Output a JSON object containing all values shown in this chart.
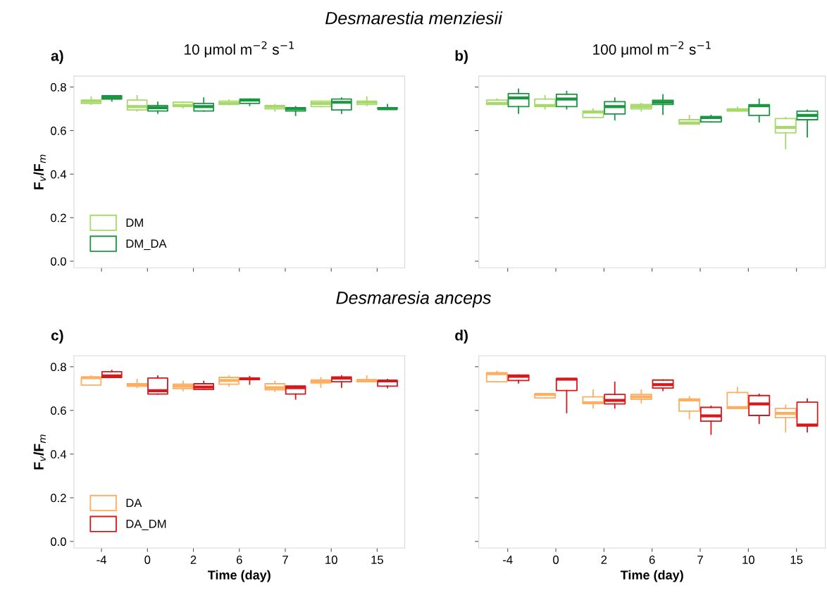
{
  "chart_data": [
    {
      "type": "box",
      "subtitle": "Desmarestia menziesii",
      "title": "10 μmol m$^{−2}$ s$^{−1}$",
      "annotations": [
        "a)"
      ],
      "ylabel": "F$_{v}$/F$_{m}$",
      "categories": [
        "-4",
        "0",
        "2",
        "6",
        "7",
        "10",
        "15"
      ],
      "ylim": [
        -0.03,
        0.85
      ],
      "yticks": [
        {
          "value": 0,
          "label": "0.0"
        },
        {
          "value": 0.2,
          "label": "0.2"
        },
        {
          "value": 0.4,
          "label": "0.4"
        },
        {
          "value": 0.6,
          "label": "0.6"
        },
        {
          "value": 0.8,
          "label": "0.8"
        }
      ],
      "tick_labels": "y",
      "legend": "bottom left",
      "series": [
        {
          "name": "DM",
          "color": "#a6d96a",
          "boxes": [
            {
              "low": 0.72,
              "q1": 0.725,
              "median": 0.735,
              "q3": 0.74,
              "high": 0.755
            },
            {
              "low": 0.69,
              "q1": 0.695,
              "median": 0.71,
              "q3": 0.74,
              "high": 0.76
            },
            {
              "low": 0.705,
              "q1": 0.71,
              "median": 0.715,
              "q3": 0.73,
              "high": 0.73
            },
            {
              "low": 0.72,
              "q1": 0.72,
              "median": 0.725,
              "q3": 0.735,
              "high": 0.74
            },
            {
              "low": 0.69,
              "q1": 0.7,
              "median": 0.71,
              "q3": 0.715,
              "high": 0.72
            },
            {
              "low": 0.71,
              "q1": 0.71,
              "median": 0.725,
              "q3": 0.735,
              "high": 0.735
            },
            {
              "low": 0.715,
              "q1": 0.72,
              "median": 0.73,
              "q3": 0.735,
              "high": 0.755
            }
          ]
        },
        {
          "name": "DM_DA",
          "color": "#1a9641",
          "boxes": [
            {
              "low": 0.735,
              "q1": 0.745,
              "median": 0.75,
              "q3": 0.76,
              "high": 0.76
            },
            {
              "low": 0.68,
              "q1": 0.69,
              "median": 0.705,
              "q3": 0.715,
              "high": 0.73
            },
            {
              "low": 0.69,
              "q1": 0.69,
              "median": 0.71,
              "q3": 0.725,
              "high": 0.75
            },
            {
              "low": 0.715,
              "q1": 0.725,
              "median": 0.74,
              "q3": 0.745,
              "high": 0.745
            },
            {
              "low": 0.67,
              "q1": 0.69,
              "median": 0.7,
              "q3": 0.705,
              "high": 0.71
            },
            {
              "low": 0.68,
              "q1": 0.695,
              "median": 0.73,
              "q3": 0.745,
              "high": 0.75
            },
            {
              "low": 0.7,
              "q1": 0.7,
              "median": 0.7,
              "q3": 0.705,
              "high": 0.72
            }
          ]
        }
      ]
    },
    {
      "type": "box",
      "title": "100 μmol m$^{−2}$ s$^{−1}$",
      "annotations": [
        "b)"
      ],
      "categories": [
        "-4",
        "0",
        "2",
        "6",
        "7",
        "10",
        "15"
      ],
      "ylim": [
        -0.03,
        0.85
      ],
      "yticks": [
        {
          "value": 0,
          "label": null
        },
        {
          "value": 0.2,
          "label": null
        },
        {
          "value": 0.4,
          "label": null
        },
        {
          "value": 0.6,
          "label": null
        },
        {
          "value": 0.8,
          "label": null
        }
      ],
      "tick_labels": false,
      "series": [
        {
          "color": "#a6d96a",
          "boxes": [
            {
              "low": 0.72,
              "q1": 0.72,
              "median": 0.725,
              "q3": 0.74,
              "high": 0.745
            },
            {
              "low": 0.7,
              "q1": 0.71,
              "median": 0.715,
              "q3": 0.745,
              "high": 0.76
            },
            {
              "low": 0.66,
              "q1": 0.66,
              "median": 0.685,
              "q3": 0.69,
              "high": 0.7
            },
            {
              "low": 0.69,
              "q1": 0.7,
              "median": 0.71,
              "q3": 0.72,
              "high": 0.725
            },
            {
              "low": 0.63,
              "q1": 0.63,
              "median": 0.635,
              "q3": 0.65,
              "high": 0.67
            },
            {
              "low": 0.69,
              "q1": 0.69,
              "median": 0.695,
              "q3": 0.7,
              "high": 0.708
            },
            {
              "low": 0.517,
              "q1": 0.59,
              "median": 0.615,
              "q3": 0.655,
              "high": 0.66
            }
          ]
        },
        {
          "color": "#1a9641",
          "boxes": [
            {
              "low": 0.68,
              "q1": 0.71,
              "median": 0.75,
              "q3": 0.77,
              "high": 0.79
            },
            {
              "low": 0.7,
              "q1": 0.71,
              "median": 0.745,
              "q3": 0.767,
              "high": 0.78
            },
            {
              "low": 0.65,
              "q1": 0.676,
              "median": 0.71,
              "q3": 0.733,
              "high": 0.75
            },
            {
              "low": 0.675,
              "q1": 0.72,
              "median": 0.73,
              "q3": 0.739,
              "high": 0.764
            },
            {
              "low": 0.64,
              "q1": 0.64,
              "median": 0.66,
              "q3": 0.664,
              "high": 0.67
            },
            {
              "low": 0.64,
              "q1": 0.67,
              "median": 0.714,
              "q3": 0.719,
              "high": 0.744
            },
            {
              "low": 0.571,
              "q1": 0.65,
              "median": 0.67,
              "q3": 0.689,
              "high": 0.694
            }
          ]
        }
      ]
    },
    {
      "type": "box",
      "subtitle": "Desmaresia anceps",
      "annotations": [
        "c)"
      ],
      "ylabel": "F$_{v}$/F$_{m}$",
      "xlabel": "Time (day)",
      "categories": [
        "-4",
        "0",
        "2",
        "6",
        "7",
        "10",
        "15"
      ],
      "ylim": [
        -0.03,
        0.85
      ],
      "yticks": [
        {
          "value": 0,
          "label": "0.0"
        },
        {
          "value": 0.2,
          "label": "0.2"
        },
        {
          "value": 0.4,
          "label": "0.4"
        },
        {
          "value": 0.6,
          "label": "0.6"
        },
        {
          "value": 0.8,
          "label": "0.8"
        }
      ],
      "legend": "bottom left",
      "series": [
        {
          "name": "DA",
          "color": "#fdae61",
          "boxes": [
            {
              "low": 0.716,
              "q1": 0.716,
              "median": 0.75,
              "q3": 0.751,
              "high": 0.758
            },
            {
              "low": 0.704,
              "q1": 0.711,
              "median": 0.715,
              "q3": 0.722,
              "high": 0.742
            },
            {
              "low": 0.69,
              "q1": 0.7,
              "median": 0.711,
              "q3": 0.72,
              "high": 0.733
            },
            {
              "low": 0.711,
              "q1": 0.72,
              "median": 0.737,
              "q3": 0.751,
              "high": 0.758
            },
            {
              "low": 0.687,
              "q1": 0.694,
              "median": 0.704,
              "q3": 0.722,
              "high": 0.733
            },
            {
              "low": 0.706,
              "q1": 0.726,
              "median": 0.733,
              "q3": 0.739,
              "high": 0.75
            },
            {
              "low": 0.731,
              "q1": 0.731,
              "median": 0.736,
              "q3": 0.741,
              "high": 0.758
            }
          ]
        },
        {
          "name": "DA_DM",
          "color": "#d7191c",
          "boxes": [
            {
              "low": 0.751,
              "q1": 0.751,
              "median": 0.758,
              "q3": 0.777,
              "high": 0.783
            },
            {
              "low": 0.675,
              "q1": 0.675,
              "median": 0.69,
              "q3": 0.748,
              "high": 0.758
            },
            {
              "low": 0.696,
              "q1": 0.696,
              "median": 0.707,
              "q3": 0.722,
              "high": 0.733
            },
            {
              "low": 0.72,
              "q1": 0.741,
              "median": 0.745,
              "q3": 0.748,
              "high": 0.755
            },
            {
              "low": 0.652,
              "q1": 0.675,
              "median": 0.704,
              "q3": 0.712,
              "high": 0.712
            },
            {
              "low": 0.706,
              "q1": 0.731,
              "median": 0.748,
              "q3": 0.753,
              "high": 0.758
            },
            {
              "low": 0.704,
              "q1": 0.711,
              "median": 0.735,
              "q3": 0.737,
              "high": 0.742
            }
          ]
        }
      ]
    },
    {
      "type": "box",
      "annotations": [
        "d)"
      ],
      "xlabel": "Time (day)",
      "categories": [
        "-4",
        "0",
        "2",
        "6",
        "7",
        "10",
        "15"
      ],
      "ylim": [
        -0.03,
        0.85
      ],
      "yticks": [
        {
          "value": 0,
          "label": null
        },
        {
          "value": 0.2,
          "label": null
        },
        {
          "value": 0.4,
          "label": null
        },
        {
          "value": 0.6,
          "label": null
        },
        {
          "value": 0.8,
          "label": null
        }
      ],
      "tick_labels": "x",
      "series": [
        {
          "color": "#fdae61",
          "boxes": [
            {
              "low": 0.731,
              "q1": 0.731,
              "median": 0.768,
              "q3": 0.772,
              "high": 0.778
            },
            {
              "low": 0.657,
              "q1": 0.657,
              "median": 0.673,
              "q3": 0.676,
              "high": 0.676
            },
            {
              "low": 0.611,
              "q1": 0.632,
              "median": 0.635,
              "q3": 0.662,
              "high": 0.693
            },
            {
              "low": 0.635,
              "q1": 0.651,
              "median": 0.662,
              "q3": 0.673,
              "high": 0.693
            },
            {
              "low": 0.562,
              "q1": 0.597,
              "median": 0.648,
              "q3": 0.652,
              "high": 0.663
            },
            {
              "low": 0.609,
              "q1": 0.609,
              "median": 0.613,
              "q3": 0.682,
              "high": 0.704
            },
            {
              "low": 0.502,
              "q1": 0.567,
              "median": 0.586,
              "q3": 0.609,
              "high": 0.624
            }
          ]
        },
        {
          "color": "#d7191c",
          "boxes": [
            {
              "low": 0.726,
              "q1": 0.737,
              "median": 0.756,
              "q3": 0.762,
              "high": 0.762
            },
            {
              "low": 0.59,
              "q1": 0.691,
              "median": 0.743,
              "q3": 0.746,
              "high": 0.746
            },
            {
              "low": 0.611,
              "q1": 0.63,
              "median": 0.646,
              "q3": 0.673,
              "high": 0.729
            },
            {
              "low": 0.691,
              "q1": 0.702,
              "median": 0.718,
              "q3": 0.739,
              "high": 0.739
            },
            {
              "low": 0.491,
              "q1": 0.551,
              "median": 0.575,
              "q3": 0.614,
              "high": 0.619
            },
            {
              "low": 0.54,
              "q1": 0.577,
              "median": 0.63,
              "q3": 0.668,
              "high": 0.674
            },
            {
              "low": 0.502,
              "q1": 0.529,
              "median": 0.533,
              "q3": 0.638,
              "high": 0.652
            }
          ]
        }
      ]
    }
  ]
}
